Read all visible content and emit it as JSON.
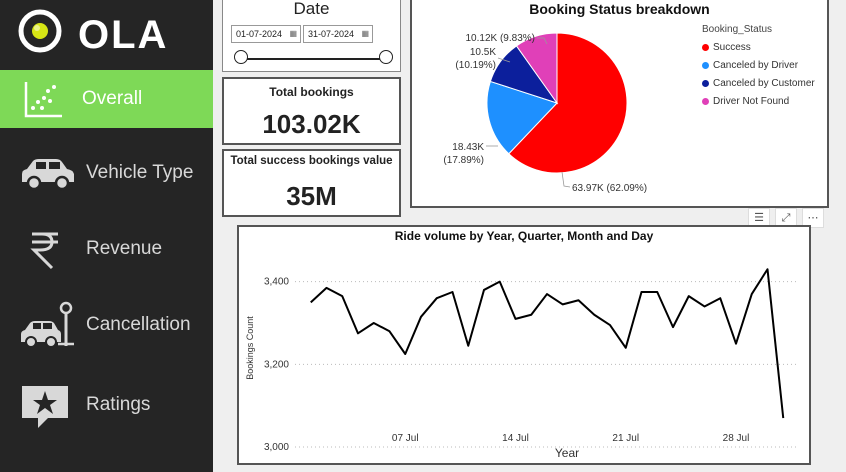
{
  "brand": {
    "name": "OLA"
  },
  "nav": [
    {
      "label": "Overall",
      "icon": "scatter-chart-icon",
      "active": true
    },
    {
      "label": "Vehicle Type",
      "icon": "car-icon"
    },
    {
      "label": "Revenue",
      "icon": "rupee-icon"
    },
    {
      "label": "Cancellation",
      "icon": "parking-car-icon"
    },
    {
      "label": "Ratings",
      "icon": "star-comment-icon"
    }
  ],
  "date_filter": {
    "title": "Date",
    "start": "01-07-2024",
    "end": "31-07-2024",
    "calendar_glyph": "▦"
  },
  "kpis": {
    "total_bookings": {
      "label": "Total bookings",
      "value": "103.02K"
    },
    "success_value": {
      "label": "Total success bookings value",
      "value": "35M"
    }
  },
  "colors": {
    "success": "#ff0000",
    "canceled_driver": "#1e90ff",
    "canceled_customer": "#0c1f9c",
    "driver_not_found": "#e040b8",
    "sidebar": "#252525",
    "active": "#7ed957"
  },
  "toolbar": {
    "filter_glyph": "☰",
    "focus_glyph": "⤢",
    "more_glyph": "⋯"
  },
  "chart_data": [
    {
      "type": "pie",
      "title": "Booking Status breakdown",
      "legend_title": "Booking_Status",
      "legend_position": "right",
      "slices": [
        {
          "name": "Success",
          "value": 63.97,
          "label": "63.97K (62.09%)"
        },
        {
          "name": "Canceled by Driver",
          "value": 18.43,
          "label_line1": "18.43K",
          "label_line2": "(17.89%)"
        },
        {
          "name": "Canceled by Customer",
          "value": 10.5,
          "label_line1": "10.5K",
          "label_line2": "(10.19%)"
        },
        {
          "name": "Driver Not Found",
          "value": 10.12,
          "label": "10.12K (9.83%)"
        }
      ]
    },
    {
      "type": "line",
      "title": "Ride volume by Year, Quarter, Month and Day",
      "xlabel": "Year",
      "ylabel": "Bookings Count",
      "ylim": [
        3000,
        3450
      ],
      "yticks": [
        "3,000",
        "3,200",
        "3,400"
      ],
      "xticks": [
        "07 Jul",
        "14 Jul",
        "21 Jul",
        "28 Jul"
      ],
      "x": [
        1,
        2,
        3,
        4,
        5,
        6,
        7,
        8,
        9,
        10,
        11,
        12,
        13,
        14,
        15,
        16,
        17,
        18,
        19,
        20,
        21,
        22,
        23,
        24,
        25,
        26,
        27,
        28,
        29,
        30,
        31
      ],
      "values": [
        3350,
        3385,
        3365,
        3275,
        3300,
        3280,
        3225,
        3315,
        3360,
        3375,
        3245,
        3380,
        3400,
        3310,
        3320,
        3370,
        3345,
        3355,
        3320,
        3295,
        3240,
        3375,
        3375,
        3290,
        3365,
        3340,
        3360,
        3250,
        3370,
        3430,
        3070
      ]
    }
  ]
}
